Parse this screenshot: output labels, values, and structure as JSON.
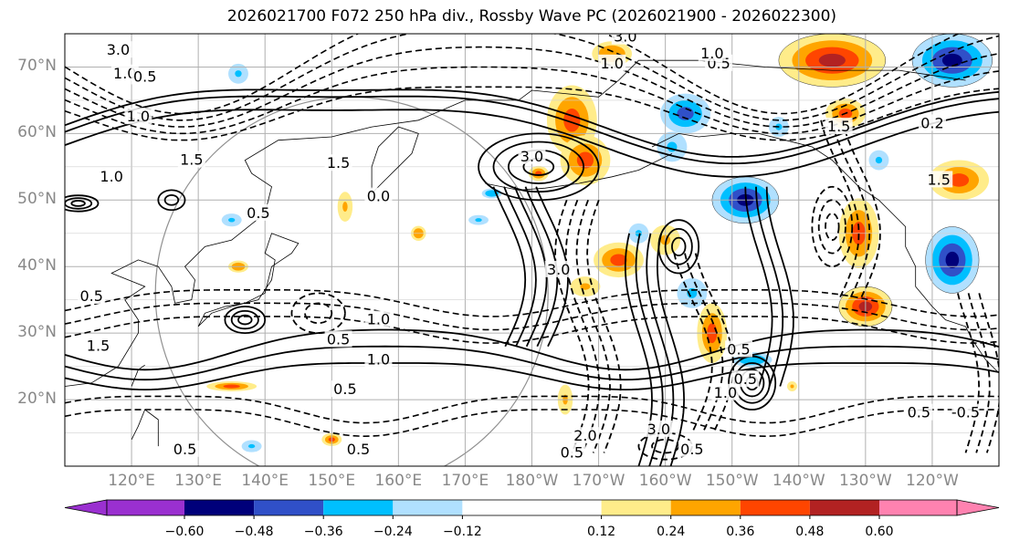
{
  "title": "2026021700 F072 250 hPa div., Rossby Wave PC (2026021900 - 2026022300)",
  "map": {
    "projection": "lat-lon",
    "lat_range_deg_north": [
      10,
      75
    ],
    "lon_range_deg_east": [
      110,
      250
    ],
    "lat_labels": [
      "70°N",
      "60°N",
      "50°N",
      "40°N",
      "30°N",
      "20°N"
    ],
    "lat_values": [
      70,
      60,
      50,
      40,
      30,
      20
    ],
    "lon_labels": [
      "120°E",
      "130°E",
      "140°E",
      "150°E",
      "160°E",
      "170°E",
      "180°W",
      "170°W",
      "160°W",
      "150°W",
      "140°W",
      "130°W",
      "120°W"
    ],
    "lon_values": [
      120,
      130,
      140,
      150,
      160,
      170,
      180,
      190,
      200,
      210,
      220,
      230,
      240
    ],
    "contour_labels": [
      {
        "text": "3.0",
        "lat": 72.5,
        "lon": 118
      },
      {
        "text": "1.0",
        "lat": 69,
        "lon": 119
      },
      {
        "text": "0.5",
        "lat": 68.5,
        "lon": 122
      },
      {
        "text": "1.0",
        "lat": 62.5,
        "lon": 121
      },
      {
        "text": "1.5",
        "lat": 56,
        "lon": 129
      },
      {
        "text": "1.0",
        "lat": 53.5,
        "lon": 117
      },
      {
        "text": "0.5",
        "lat": 48,
        "lon": 139
      },
      {
        "text": "1.5",
        "lat": 55.5,
        "lon": 151
      },
      {
        "text": "0.0",
        "lat": 50.5,
        "lon": 157
      },
      {
        "text": "3.0",
        "lat": 56.5,
        "lon": 180
      },
      {
        "text": "1.0",
        "lat": 70.5,
        "lon": 192
      },
      {
        "text": "0.5",
        "lat": 70.5,
        "lon": 208
      },
      {
        "text": "1.0",
        "lat": 72,
        "lon": 207
      },
      {
        "text": "3.0",
        "lat": 74.5,
        "lon": 194
      },
      {
        "text": "0.5",
        "lat": 35.5,
        "lon": 114
      },
      {
        "text": "1.5",
        "lat": 28,
        "lon": 115
      },
      {
        "text": "0.5",
        "lat": 29,
        "lon": 151
      },
      {
        "text": "1.0",
        "lat": 32,
        "lon": 157
      },
      {
        "text": "1.0",
        "lat": 26,
        "lon": 157
      },
      {
        "text": "0.5",
        "lat": 21.5,
        "lon": 152
      },
      {
        "text": "3.0",
        "lat": 39.5,
        "lon": 184
      },
      {
        "text": "3.0",
        "lat": 15.5,
        "lon": 199
      },
      {
        "text": "0.5",
        "lat": 27.5,
        "lon": 211
      },
      {
        "text": "0.5",
        "lat": 23,
        "lon": 212
      },
      {
        "text": "1.0",
        "lat": 21,
        "lon": 209
      },
      {
        "text": "0.5",
        "lat": 12.5,
        "lon": 204
      },
      {
        "text": "0.5",
        "lat": 12,
        "lon": 186
      },
      {
        "text": "2.0",
        "lat": 14.5,
        "lon": 188
      },
      {
        "text": "0.5",
        "lat": 12.5,
        "lon": 154
      },
      {
        "text": "0.5",
        "lat": 12.5,
        "lon": 128
      },
      {
        "text": "-0.5",
        "lat": 18,
        "lon": 245
      },
      {
        "text": "0.5",
        "lat": 18,
        "lon": 238
      },
      {
        "text": "0.2",
        "lat": 61.5,
        "lon": 240
      },
      {
        "text": "1.5",
        "lat": 53,
        "lon": 241
      },
      {
        "text": "1.5",
        "lat": 61,
        "lon": 226
      }
    ],
    "diverge_blobs": [
      {
        "lat": 62,
        "lon": 186,
        "v": 0.42,
        "rlat": 7,
        "rlon": 5
      },
      {
        "lat": 56,
        "lon": 188,
        "v": 0.38,
        "rlat": 5,
        "rlon": 5
      },
      {
        "lat": 72,
        "lon": 192,
        "v": 0.35,
        "rlat": 2.5,
        "rlon": 4
      },
      {
        "lat": 41,
        "lon": 193,
        "v": 0.45,
        "rlat": 3.5,
        "rlon": 5
      },
      {
        "lat": 37,
        "lon": 188,
        "v": 0.3,
        "rlat": 2,
        "rlon": 3
      },
      {
        "lat": 44,
        "lon": 200,
        "v": 0.3,
        "rlat": 3,
        "rlon": 3
      },
      {
        "lat": 30,
        "lon": 207,
        "v": 0.45,
        "rlat": 6,
        "rlon": 3
      },
      {
        "lat": 71,
        "lon": 225,
        "v": 0.5,
        "rlat": 4,
        "rlon": 8
      },
      {
        "lat": 63,
        "lon": 227,
        "v": 0.45,
        "rlat": 3,
        "rlon": 4
      },
      {
        "lat": 45,
        "lon": 229,
        "v": 0.45,
        "rlat": 7,
        "rlon": 4
      },
      {
        "lat": 34,
        "lon": 230,
        "v": 0.55,
        "rlat": 3,
        "rlon": 4
      },
      {
        "lat": 53,
        "lon": 244,
        "v": 0.45,
        "rlat": 4,
        "rlon": 6
      },
      {
        "lat": 22,
        "lon": 135,
        "v": 0.38,
        "rlat": 1,
        "rlon": 5
      },
      {
        "lat": 14,
        "lon": 150,
        "v": 0.45,
        "rlat": 1.3,
        "rlon": 2
      },
      {
        "lat": 54,
        "lon": 181,
        "v": 0.4,
        "rlat": 1.5,
        "rlon": 2
      },
      {
        "lat": 49,
        "lon": 152,
        "v": 0.3,
        "rlat": 3,
        "rlon": 1.5
      },
      {
        "lat": 45,
        "lon": 163,
        "v": 0.35,
        "rlat": 1.5,
        "rlon": 1.5
      },
      {
        "lat": 40,
        "lon": 136,
        "v": 0.35,
        "rlat": 1.2,
        "rlon": 2
      },
      {
        "lat": 20,
        "lon": 185,
        "v": 0.3,
        "rlat": 3,
        "rlon": 1.5
      },
      {
        "lat": 22,
        "lon": 219,
        "v": 0.3,
        "rlat": 1,
        "rlon": 1
      }
    ],
    "converge_blobs": [
      {
        "lat": 63,
        "lon": 203,
        "v": -0.45,
        "rlat": 4,
        "rlon": 5
      },
      {
        "lat": 58,
        "lon": 201,
        "v": -0.3,
        "rlat": 3,
        "rlon": 3
      },
      {
        "lat": 50,
        "lon": 212,
        "v": -0.55,
        "rlat": 3.5,
        "rlon": 5
      },
      {
        "lat": 71,
        "lon": 243,
        "v": -0.5,
        "rlat": 4,
        "rlon": 6
      },
      {
        "lat": 41,
        "lon": 243,
        "v": -0.55,
        "rlat": 5,
        "rlon": 4
      },
      {
        "lat": 36,
        "lon": 204,
        "v": -0.3,
        "rlat": 3,
        "rlon": 3
      },
      {
        "lat": 26,
        "lon": 213,
        "v": -0.35,
        "rlat": 1.5,
        "rlon": 4
      },
      {
        "lat": 45,
        "lon": 196,
        "v": -0.3,
        "rlat": 2,
        "rlon": 2
      },
      {
        "lat": 69,
        "lon": 136,
        "v": -0.3,
        "rlat": 2,
        "rlon": 2
      },
      {
        "lat": 47,
        "lon": 135,
        "v": -0.3,
        "rlat": 1.3,
        "rlon": 2
      },
      {
        "lat": 13,
        "lon": 138,
        "v": -0.3,
        "rlat": 1.2,
        "rlon": 2
      },
      {
        "lat": 51,
        "lon": 174,
        "v": -0.35,
        "rlat": 1,
        "rlon": 2
      },
      {
        "lat": 61,
        "lon": 217,
        "v": -0.3,
        "rlat": 2,
        "rlon": 2
      },
      {
        "lat": 56,
        "lon": 232,
        "v": -0.3,
        "rlat": 2,
        "rlon": 2
      },
      {
        "lat": 47,
        "lon": 172,
        "v": -0.3,
        "rlat": 1,
        "rlon": 2
      }
    ]
  },
  "colorbar": {
    "ticks": [
      "−0.60",
      "−0.48",
      "−0.36",
      "−0.24",
      "−0.12",
      "0.12",
      "0.24",
      "0.36",
      "0.48",
      "0.60"
    ],
    "tick_values": [
      -0.6,
      -0.48,
      -0.36,
      -0.24,
      -0.12,
      0.12,
      0.24,
      0.36,
      0.48,
      0.6
    ],
    "colors": [
      "#9a30d0",
      "#00007a",
      "#3050c8",
      "#00bfff",
      "#b0e0ff",
      "#ffffff",
      "#ffec8a",
      "#ffa500",
      "#ff4500",
      "#b22222",
      "#ff82b0"
    ]
  }
}
